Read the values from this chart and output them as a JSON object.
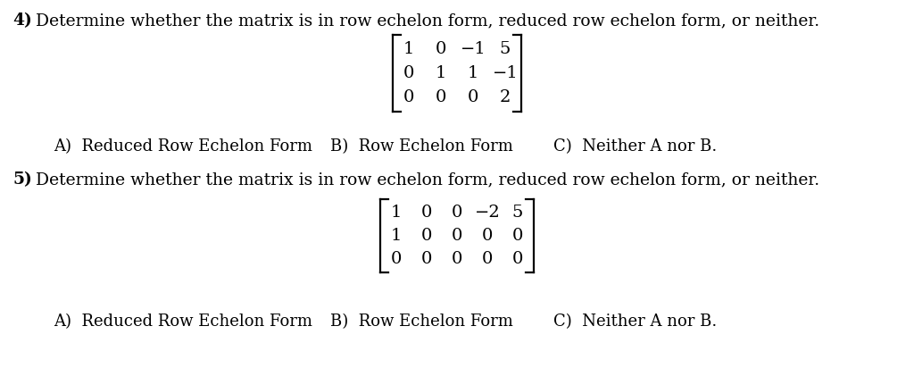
{
  "bg_color": "#ffffff",
  "title4": "4)",
  "title5": "5)",
  "question_text": "Determine whether the matrix is in row echelon form, reduced row echelon form, or neither.",
  "matrix1": [
    [
      "1",
      "0",
      "−1",
      "5"
    ],
    [
      "0",
      "1",
      "1",
      "−1"
    ],
    [
      "0",
      "0",
      "0",
      "2"
    ]
  ],
  "matrix2": [
    [
      "1",
      "0",
      "0",
      "−2",
      "5"
    ],
    [
      "1",
      "0",
      "0",
      "0",
      "0"
    ],
    [
      "0",
      "0",
      "0",
      "0",
      "0"
    ]
  ],
  "answers_A": "A)  Reduced Row Echelon Form",
  "answers_B": "B)  Row Echelon Form",
  "answers_C": "C)  Neither A nor B.",
  "font_size_question": 13.5,
  "font_size_matrix": 14,
  "font_size_answers": 13,
  "text_color": "#000000",
  "serif_font": "DejaVu Serif"
}
